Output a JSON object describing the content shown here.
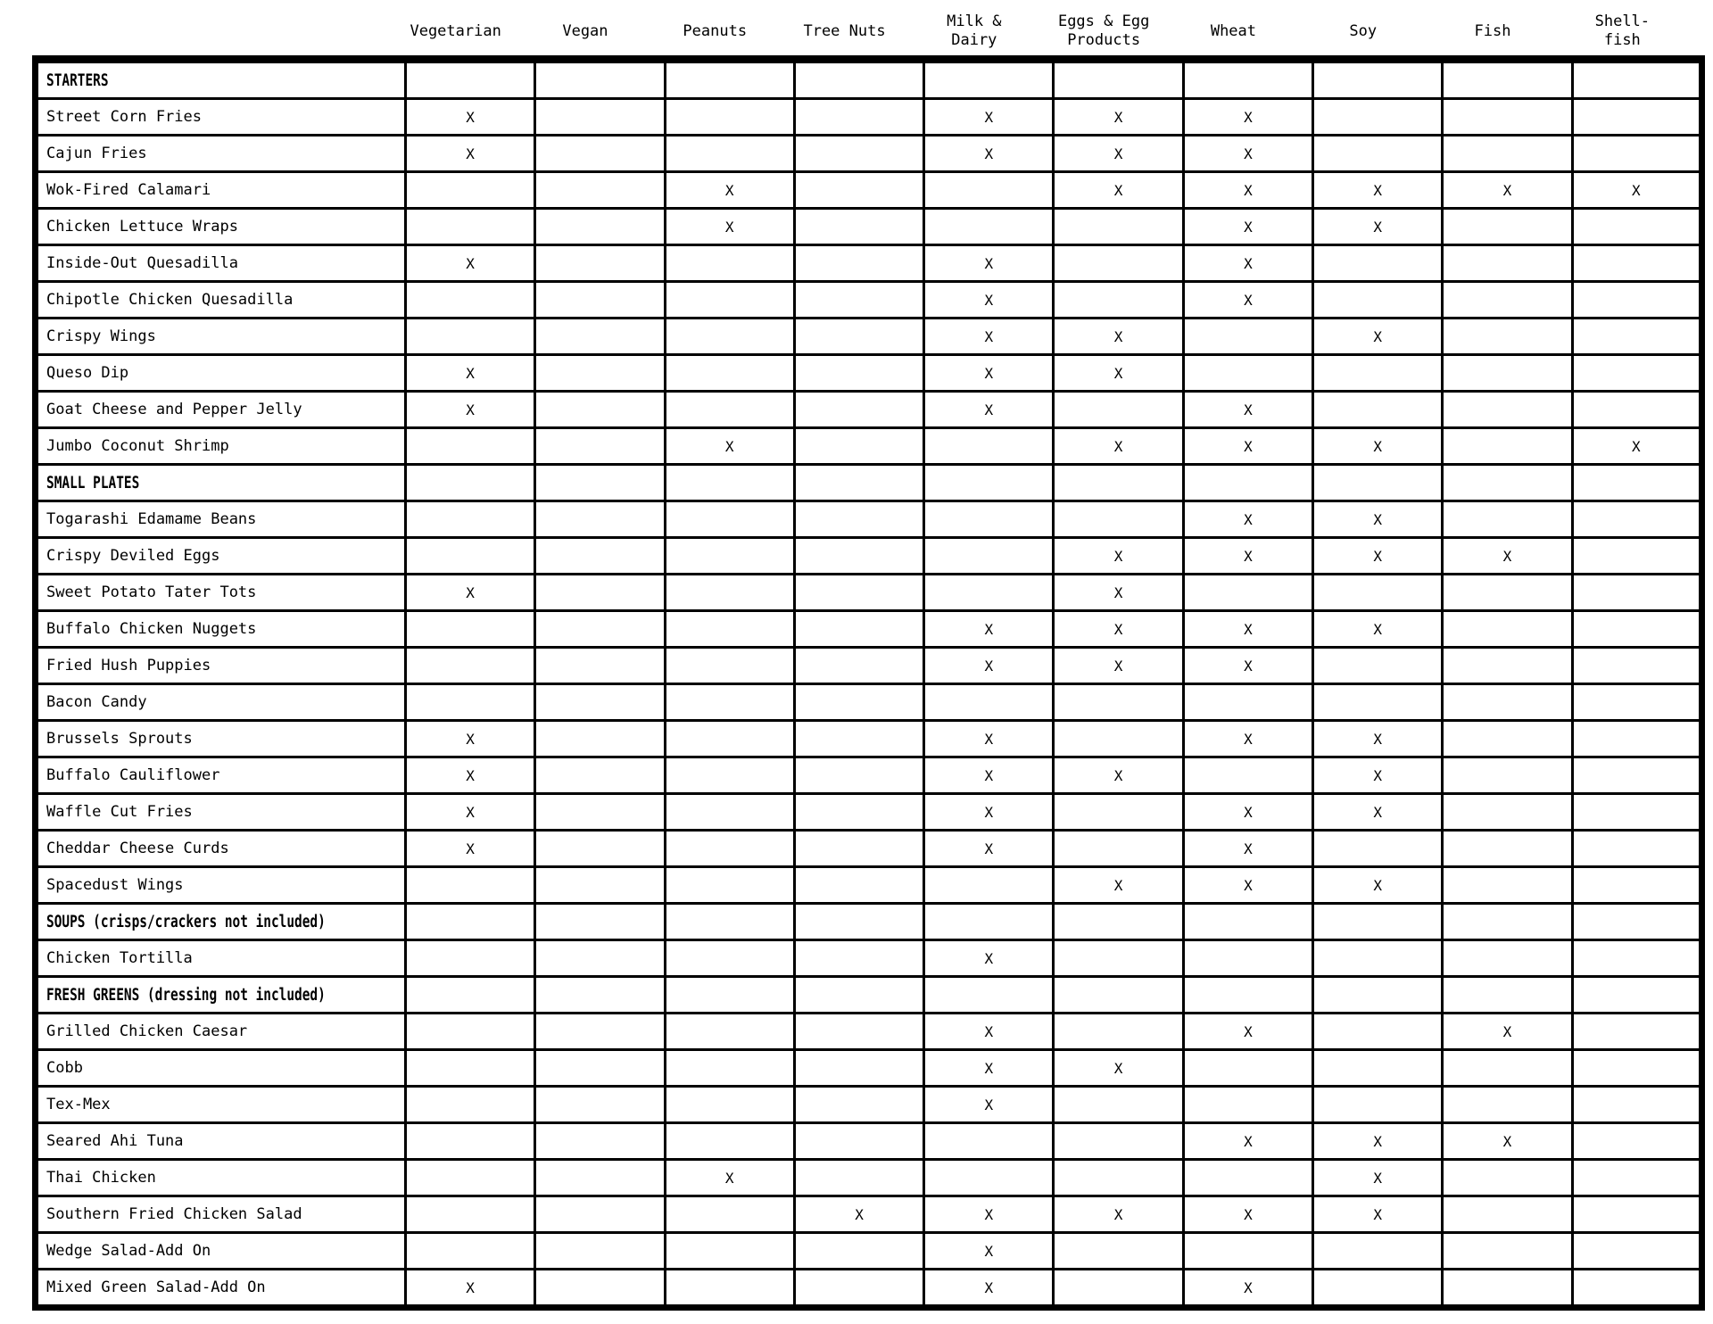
{
  "page": {
    "background_color": "#ffffff",
    "text_color": "#000000",
    "description": "Restaurant menu allergen matrix"
  },
  "table": {
    "mark": "X",
    "columns": [
      {
        "id": "vegetarian",
        "label": "Vegetarian",
        "lines": [
          "Vegetarian"
        ]
      },
      {
        "id": "vegan",
        "label": "Vegan",
        "lines": [
          "Vegan"
        ]
      },
      {
        "id": "peanuts",
        "label": "Peanuts",
        "lines": [
          "Peanuts"
        ]
      },
      {
        "id": "tree-nuts",
        "label": "Tree Nuts",
        "lines": [
          "Tree Nuts"
        ]
      },
      {
        "id": "milk-dairy",
        "label": "Milk & Dairy",
        "lines": [
          "Milk &",
          "Dairy"
        ]
      },
      {
        "id": "eggs-egg-products",
        "label": "Eggs & Egg Products",
        "lines": [
          "Eggs & Egg",
          "Products"
        ]
      },
      {
        "id": "wheat",
        "label": "Wheat",
        "lines": [
          "Wheat"
        ]
      },
      {
        "id": "soy",
        "label": "Soy",
        "lines": [
          "Soy"
        ]
      },
      {
        "id": "fish",
        "label": "Fish",
        "lines": [
          "Fish"
        ]
      },
      {
        "id": "shellfish",
        "label": "Shell-fish",
        "lines": [
          "Shell-",
          "fish"
        ]
      }
    ],
    "rows": [
      {
        "type": "section",
        "label": "STARTERS",
        "cells": [
          "",
          "",
          "",
          "",
          "",
          "",
          "",
          "",
          "",
          ""
        ]
      },
      {
        "type": "item",
        "label": "Street Corn Fries",
        "cells": [
          "X",
          "",
          "",
          "",
          "X",
          "X",
          "X",
          "",
          "",
          ""
        ]
      },
      {
        "type": "item",
        "label": "Cajun Fries",
        "cells": [
          "X",
          "",
          "",
          "",
          "X",
          "X",
          "X",
          "",
          "",
          ""
        ]
      },
      {
        "type": "item",
        "label": "Wok-Fired Calamari",
        "cells": [
          "",
          "",
          "X",
          "",
          "",
          "X",
          "X",
          "X",
          "X",
          "X"
        ]
      },
      {
        "type": "item",
        "label": "Chicken Lettuce Wraps",
        "cells": [
          "",
          "",
          "X",
          "",
          "",
          "",
          "X",
          "X",
          "",
          ""
        ]
      },
      {
        "type": "item",
        "label": "Inside-Out Quesadilla",
        "cells": [
          "X",
          "",
          "",
          "",
          "X",
          "",
          "X",
          "",
          "",
          ""
        ]
      },
      {
        "type": "item",
        "label": "Chipotle Chicken Quesadilla",
        "cells": [
          "",
          "",
          "",
          "",
          "X",
          "",
          "X",
          "",
          "",
          ""
        ]
      },
      {
        "type": "item",
        "label": "Crispy Wings",
        "cells": [
          "",
          "",
          "",
          "",
          "X",
          "X",
          "",
          "X",
          "",
          ""
        ]
      },
      {
        "type": "item",
        "label": "Queso Dip",
        "cells": [
          "X",
          "",
          "",
          "",
          "X",
          "X",
          "",
          "",
          "",
          ""
        ]
      },
      {
        "type": "item",
        "label": "Goat Cheese and Pepper Jelly",
        "cells": [
          "X",
          "",
          "",
          "",
          "X",
          "",
          "X",
          "",
          "",
          ""
        ]
      },
      {
        "type": "item",
        "label": "Jumbo Coconut Shrimp",
        "cells": [
          "",
          "",
          "X",
          "",
          "",
          "X",
          "X",
          "X",
          "",
          "X"
        ]
      },
      {
        "type": "section",
        "label": "SMALL PLATES",
        "cells": [
          "",
          "",
          "",
          "",
          "",
          "",
          "",
          "",
          "",
          ""
        ]
      },
      {
        "type": "item",
        "label": "Togarashi Edamame Beans",
        "cells": [
          "",
          "",
          "",
          "",
          "",
          "",
          "X",
          "X",
          "",
          ""
        ]
      },
      {
        "type": "item",
        "label": "Crispy Deviled Eggs",
        "cells": [
          "",
          "",
          "",
          "",
          "",
          "X",
          "X",
          "X",
          "X",
          ""
        ]
      },
      {
        "type": "item",
        "label": "Sweet Potato Tater Tots",
        "cells": [
          "X",
          "",
          "",
          "",
          "",
          "X",
          "",
          "",
          "",
          ""
        ]
      },
      {
        "type": "item",
        "label": "Buffalo Chicken Nuggets",
        "cells": [
          "",
          "",
          "",
          "",
          "X",
          "X",
          "X",
          "X",
          "",
          ""
        ]
      },
      {
        "type": "item",
        "label": "Fried Hush Puppies",
        "cells": [
          "",
          "",
          "",
          "",
          "X",
          "X",
          "X",
          "",
          "",
          ""
        ]
      },
      {
        "type": "item",
        "label": "Bacon Candy",
        "cells": [
          "",
          "",
          "",
          "",
          "",
          "",
          "",
          "",
          "",
          ""
        ]
      },
      {
        "type": "item",
        "label": "Brussels Sprouts",
        "cells": [
          "X",
          "",
          "",
          "",
          "X",
          "",
          "X",
          "X",
          "",
          ""
        ]
      },
      {
        "type": "item",
        "label": "Buffalo Cauliflower",
        "cells": [
          "X",
          "",
          "",
          "",
          "X",
          "X",
          "",
          "X",
          "",
          ""
        ]
      },
      {
        "type": "item",
        "label": "Waffle Cut Fries",
        "cells": [
          "X",
          "",
          "",
          "",
          "X",
          "",
          "X",
          "X",
          "",
          ""
        ]
      },
      {
        "type": "item",
        "label": "Cheddar Cheese Curds",
        "cells": [
          "X",
          "",
          "",
          "",
          "X",
          "",
          "X",
          "",
          "",
          ""
        ]
      },
      {
        "type": "item",
        "label": "Spacedust Wings",
        "cells": [
          "",
          "",
          "",
          "",
          "",
          "X",
          "X",
          "X",
          "",
          ""
        ]
      },
      {
        "type": "section",
        "label": "SOUPS (crisps/crackers not included)",
        "cells": [
          "",
          "",
          "",
          "",
          "",
          "",
          "",
          "",
          "",
          ""
        ]
      },
      {
        "type": "item",
        "label": "Chicken Tortilla",
        "cells": [
          "",
          "",
          "",
          "",
          "X",
          "",
          "",
          "",
          "",
          ""
        ]
      },
      {
        "type": "section",
        "label": "FRESH GREENS (dressing not included)",
        "cells": [
          "",
          "",
          "",
          "",
          "",
          "",
          "",
          "",
          "",
          ""
        ]
      },
      {
        "type": "item",
        "label": "Grilled Chicken Caesar",
        "cells": [
          "",
          "",
          "",
          "",
          "X",
          "",
          "X",
          "",
          "X",
          ""
        ]
      },
      {
        "type": "item",
        "label": "Cobb",
        "cells": [
          "",
          "",
          "",
          "",
          "X",
          "X",
          "",
          "",
          "",
          ""
        ]
      },
      {
        "type": "item",
        "label": "Tex-Mex",
        "cells": [
          "",
          "",
          "",
          "",
          "X",
          "",
          "",
          "",
          "",
          ""
        ]
      },
      {
        "type": "item",
        "label": "Seared Ahi Tuna",
        "cells": [
          "",
          "",
          "",
          "",
          "",
          "",
          "X",
          "X",
          "X",
          ""
        ]
      },
      {
        "type": "item",
        "label": "Thai Chicken",
        "cells": [
          "",
          "",
          "X",
          "",
          "",
          "",
          "",
          "X",
          "",
          ""
        ]
      },
      {
        "type": "item",
        "label": "Southern Fried Chicken Salad",
        "cells": [
          "",
          "",
          "",
          "X",
          "X",
          "X",
          "X",
          "X",
          "",
          ""
        ]
      },
      {
        "type": "item",
        "label": "Wedge Salad-Add On",
        "cells": [
          "",
          "",
          "",
          "",
          "X",
          "",
          "",
          "",
          "",
          ""
        ]
      },
      {
        "type": "item",
        "label": "Mixed Green Salad-Add On",
        "cells": [
          "X",
          "",
          "",
          "",
          "X",
          "",
          "X",
          "",
          "",
          ""
        ]
      }
    ]
  }
}
